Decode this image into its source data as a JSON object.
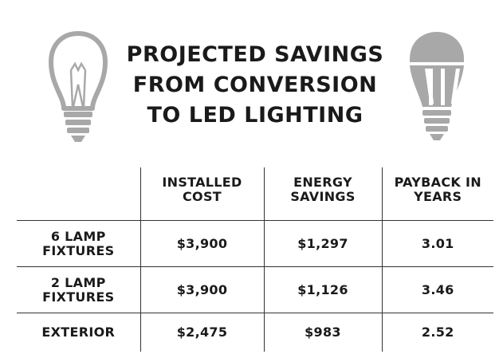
{
  "title": {
    "line1": "PROJECTED SAVINGS",
    "line2": "FROM CONVERSION",
    "line3": "TO LED LIGHTING"
  },
  "icons": {
    "left": "incandescent-bulb-icon",
    "right": "led-bulb-icon",
    "color": "#a8a8a8"
  },
  "table": {
    "headers": [
      "",
      [
        "INSTALLED",
        "COST"
      ],
      [
        "ENERGY",
        "SAVINGS"
      ],
      [
        "PAYBACK IN",
        "YEARS"
      ]
    ],
    "rows": [
      {
        "label": [
          "6 LAMP",
          "FIXTURES"
        ],
        "installed_cost": "$3,900",
        "energy_savings": "$1,297",
        "payback_years": "3.01"
      },
      {
        "label": [
          "2 LAMP",
          "FIXTURES"
        ],
        "installed_cost": "$3,900",
        "energy_savings": "$1,126",
        "payback_years": "3.46"
      },
      {
        "label": [
          "EXTERIOR"
        ],
        "installed_cost": "$2,475",
        "energy_savings": "$983",
        "payback_years": "2.52"
      }
    ]
  }
}
